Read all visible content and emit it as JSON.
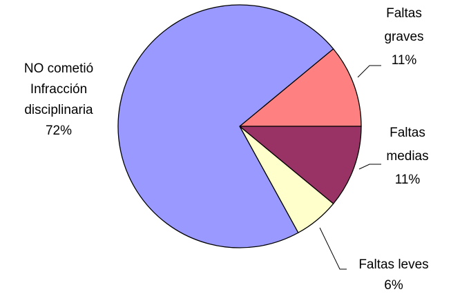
{
  "chart_data": {
    "type": "pie",
    "categories": [
      "Faltas graves",
      "Faltas medias",
      "Faltas leves",
      "NO cometió Infracción disciplinaria"
    ],
    "values": [
      11,
      11,
      6,
      72
    ],
    "value_labels": [
      "11%",
      "11%",
      "6%",
      "72%"
    ],
    "colors": [
      "#ff8080",
      "#993366",
      "#ffffcc",
      "#9999ff"
    ]
  }
}
